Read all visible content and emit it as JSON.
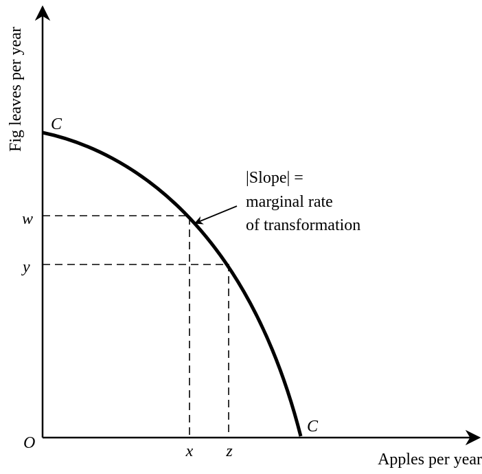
{
  "y_axis_label": "Fig leaves per year",
  "x_axis_label": "Apples per year",
  "curve_labels": [
    "C",
    "C"
  ],
  "origin_label": "O",
  "y_markers": [
    "w",
    "y"
  ],
  "x_markers": [
    "x",
    "z"
  ],
  "annotation": [
    "|Slope| =",
    "marginal rate",
    "of transformation"
  ]
}
